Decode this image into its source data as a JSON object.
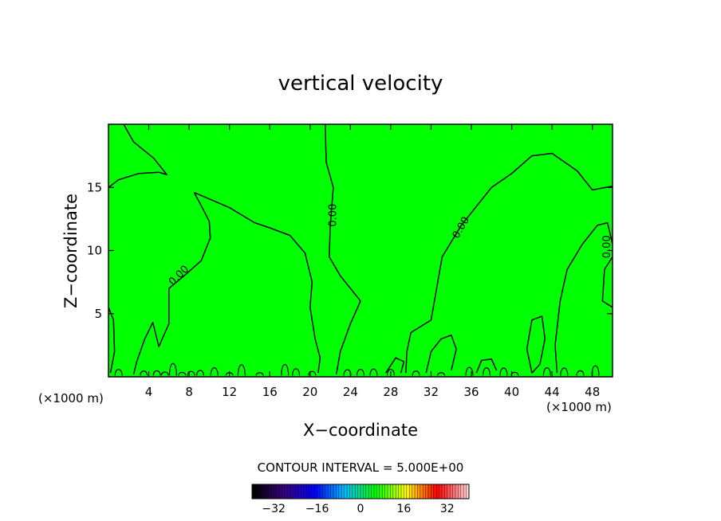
{
  "chart_data": {
    "type": "heatmap",
    "title": "vertical velocity",
    "xlabel": "X−coordinate",
    "ylabel": "Z−coordinate",
    "x_unit_left": "(×1000 m)",
    "x_unit_right": "(×1000 m)",
    "xlim": [
      0,
      50
    ],
    "ylim": [
      0,
      20
    ],
    "x_ticks": [
      4,
      8,
      12,
      16,
      20,
      24,
      28,
      32,
      36,
      40,
      44,
      48
    ],
    "y_ticks": [
      5,
      10,
      15
    ],
    "field_color": "#00ff00",
    "contour_label": "0.00",
    "contour_interval_text": "CONTOUR INTERVAL = 5.000E+00",
    "colorbar": {
      "min": -40,
      "max": 40,
      "ticks": [
        -32,
        -16,
        0,
        16,
        32
      ],
      "tick_labels": [
        "−32",
        "−16",
        "0",
        "16",
        "32"
      ],
      "stops": [
        "#000000",
        "#3a0080",
        "#0000ff",
        "#00c0ff",
        "#00ff00",
        "#ffff00",
        "#ff0000",
        "#ffd0d0"
      ]
    },
    "zero_contours": [
      [
        [
          0,
          15
        ],
        [
          1,
          15.6
        ],
        [
          3,
          16.1
        ],
        [
          5,
          16.2
        ],
        [
          5.8,
          16.0
        ],
        [
          4.5,
          17.3
        ],
        [
          2.5,
          18.6
        ],
        [
          1.5,
          20
        ]
      ],
      [
        [
          8.5,
          14.6
        ],
        [
          12,
          13.4
        ],
        [
          14.5,
          12.2
        ],
        [
          16,
          11.8
        ],
        [
          18,
          11.2
        ],
        [
          19.5,
          9.8
        ],
        [
          20.2,
          7.5
        ],
        [
          20,
          5.5
        ],
        [
          20.5,
          3
        ],
        [
          21,
          1.5
        ],
        [
          20.8,
          0.3
        ]
      ],
      [
        [
          8.5,
          14.6
        ],
        [
          9.3,
          13.4
        ],
        [
          10,
          12.3
        ],
        [
          10.1,
          11
        ],
        [
          9.2,
          9.2
        ],
        [
          7.5,
          8
        ],
        [
          6,
          7
        ],
        [
          6,
          4.2
        ],
        [
          5,
          2.4
        ],
        [
          4.4,
          4.3
        ],
        [
          3.6,
          3
        ],
        [
          2.8,
          1.2
        ],
        [
          2.5,
          0.2
        ]
      ],
      [
        [
          21.5,
          20
        ],
        [
          21.6,
          17
        ],
        [
          22.3,
          15
        ],
        [
          22,
          12
        ],
        [
          21.9,
          9.5
        ],
        [
          23,
          8
        ],
        [
          25,
          6
        ],
        [
          24,
          4.2
        ],
        [
          23,
          2
        ],
        [
          22.6,
          0.2
        ]
      ],
      [
        [
          29.5,
          0.3
        ],
        [
          29.6,
          2
        ],
        [
          30,
          3.5
        ],
        [
          31,
          4
        ],
        [
          32,
          4.5
        ],
        [
          33.1,
          9.5
        ],
        [
          35,
          12
        ],
        [
          36.5,
          13.5
        ],
        [
          38,
          15
        ],
        [
          40,
          16.1
        ],
        [
          42,
          17.5
        ],
        [
          44,
          17.7
        ],
        [
          46.5,
          16.3
        ],
        [
          48,
          14.8
        ],
        [
          50,
          15.1
        ]
      ],
      [
        [
          44.5,
          0.3
        ],
        [
          44.3,
          2.5
        ],
        [
          44.8,
          6
        ],
        [
          45.5,
          8.5
        ],
        [
          47,
          10.5
        ],
        [
          48.5,
          12
        ],
        [
          49.5,
          12.2
        ],
        [
          50,
          10.5
        ]
      ],
      [
        [
          50,
          9.5
        ],
        [
          49.2,
          8.5
        ],
        [
          49.0,
          6
        ],
        [
          50,
          5.5
        ]
      ],
      [
        [
          0,
          5.5
        ],
        [
          0.5,
          4.5
        ],
        [
          0.6,
          2
        ],
        [
          0.2,
          0.3
        ]
      ],
      [
        [
          42,
          0.3
        ],
        [
          41.5,
          2.2
        ],
        [
          42,
          4.5
        ],
        [
          43,
          4.8
        ],
        [
          43.3,
          3
        ],
        [
          42.8,
          1
        ],
        [
          42,
          0.3
        ]
      ],
      [
        [
          31.5,
          0.3
        ],
        [
          32,
          2
        ],
        [
          33,
          3
        ],
        [
          34,
          3.3
        ],
        [
          34.5,
          2.2
        ],
        [
          34,
          0.5
        ]
      ],
      [
        [
          27.5,
          0.3
        ],
        [
          28.5,
          1.5
        ],
        [
          29.3,
          1.2
        ],
        [
          29,
          0.3
        ]
      ],
      [
        [
          36.5,
          0.3
        ],
        [
          37,
          1.3
        ],
        [
          38,
          1.4
        ],
        [
          38.5,
          0.5
        ]
      ]
    ],
    "label_positions": [
      {
        "x": 7,
        "y": 8,
        "angle": -45
      },
      {
        "x": 22.3,
        "y": 12.8,
        "angle": -90
      },
      {
        "x": 35,
        "y": 11.8,
        "angle": -60
      },
      {
        "x": 49.5,
        "y": 10.3,
        "angle": -90
      }
    ]
  }
}
